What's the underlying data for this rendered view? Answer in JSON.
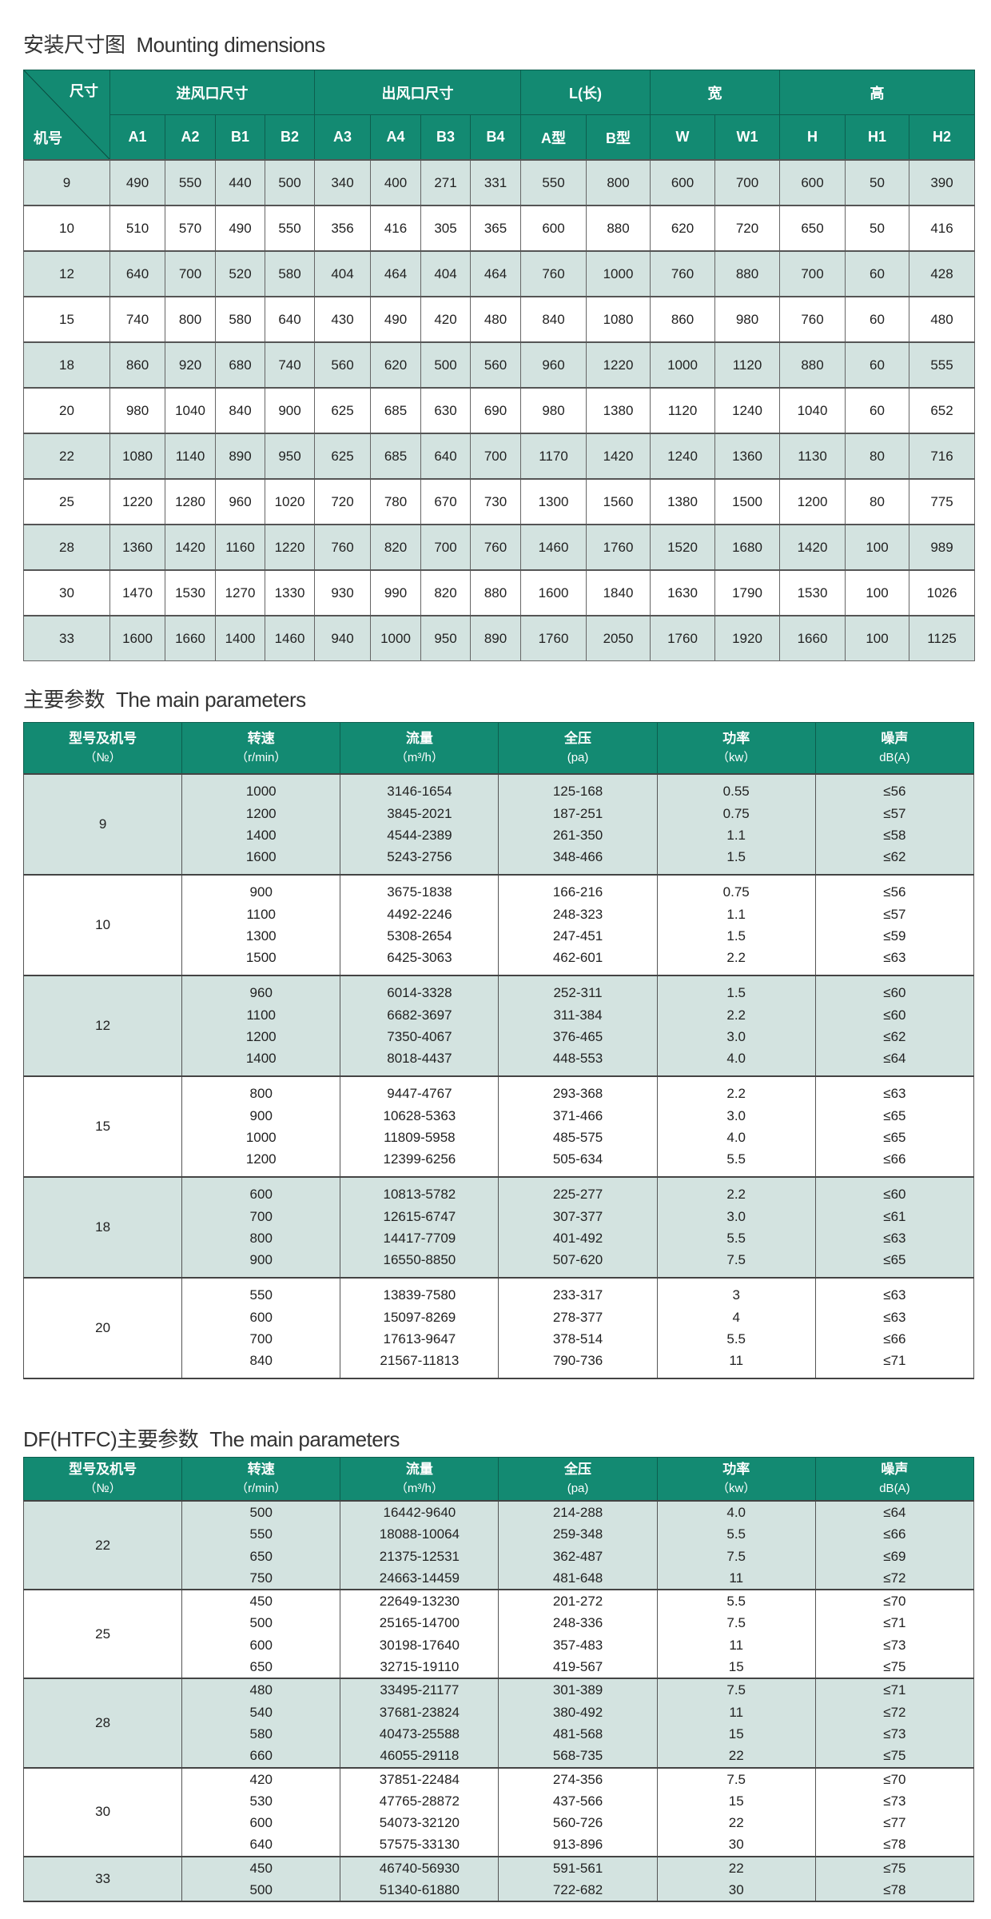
{
  "mounting": {
    "title_cn": "安装尺寸图",
    "title_en": "Mounting dimensions",
    "corner_top": "尺寸",
    "corner_bottom": "机号",
    "groups": [
      {
        "label": "进风口尺寸",
        "span": 4
      },
      {
        "label": "出风口尺寸",
        "span": 4
      },
      {
        "label": "L(长)",
        "span": 2
      },
      {
        "label": "宽",
        "span": 2
      },
      {
        "label": "高",
        "span": 3
      }
    ],
    "columns": [
      "A1",
      "A2",
      "B1",
      "B2",
      "A3",
      "A4",
      "B3",
      "B4",
      "A型",
      "B型",
      "W",
      "W1",
      "H",
      "H1",
      "H2"
    ],
    "rows": [
      [
        "9",
        "490",
        "550",
        "440",
        "500",
        "340",
        "400",
        "271",
        "331",
        "550",
        "800",
        "600",
        "700",
        "600",
        "50",
        "390"
      ],
      [
        "10",
        "510",
        "570",
        "490",
        "550",
        "356",
        "416",
        "305",
        "365",
        "600",
        "880",
        "620",
        "720",
        "650",
        "50",
        "416"
      ],
      [
        "12",
        "640",
        "700",
        "520",
        "580",
        "404",
        "464",
        "404",
        "464",
        "760",
        "1000",
        "760",
        "880",
        "700",
        "60",
        "428"
      ],
      [
        "15",
        "740",
        "800",
        "580",
        "640",
        "430",
        "490",
        "420",
        "480",
        "840",
        "1080",
        "860",
        "980",
        "760",
        "60",
        "480"
      ],
      [
        "18",
        "860",
        "920",
        "680",
        "740",
        "560",
        "620",
        "500",
        "560",
        "960",
        "1220",
        "1000",
        "1120",
        "880",
        "60",
        "555"
      ],
      [
        "20",
        "980",
        "1040",
        "840",
        "900",
        "625",
        "685",
        "630",
        "690",
        "980",
        "1380",
        "1120",
        "1240",
        "1040",
        "60",
        "652"
      ],
      [
        "22",
        "1080",
        "1140",
        "890",
        "950",
        "625",
        "685",
        "640",
        "700",
        "1170",
        "1420",
        "1240",
        "1360",
        "1130",
        "80",
        "716"
      ],
      [
        "25",
        "1220",
        "1280",
        "960",
        "1020",
        "720",
        "780",
        "670",
        "730",
        "1300",
        "1560",
        "1380",
        "1500",
        "1200",
        "80",
        "775"
      ],
      [
        "28",
        "1360",
        "1420",
        "1160",
        "1220",
        "760",
        "820",
        "700",
        "760",
        "1460",
        "1760",
        "1520",
        "1680",
        "1420",
        "100",
        "989"
      ],
      [
        "30",
        "1470",
        "1530",
        "1270",
        "1330",
        "930",
        "990",
        "820",
        "880",
        "1600",
        "1840",
        "1630",
        "1790",
        "1530",
        "100",
        "1026"
      ],
      [
        "33",
        "1600",
        "1660",
        "1400",
        "1460",
        "940",
        "1000",
        "950",
        "890",
        "1760",
        "2050",
        "1760",
        "1920",
        "1660",
        "100",
        "1125"
      ]
    ]
  },
  "main_params": {
    "title_cn": "主要参数",
    "title_en": "The main parameters",
    "headers": [
      {
        "name": "型号及机号",
        "unit": "（№）"
      },
      {
        "name": "转速",
        "unit": "（r/min）"
      },
      {
        "name": "流量",
        "unit": "（m³/h）"
      },
      {
        "name": "全压",
        "unit": "(pa)"
      },
      {
        "name": "功率",
        "unit": "（kw）"
      },
      {
        "name": "噪声",
        "unit": "dB(A)"
      }
    ],
    "groups": [
      {
        "model": "9",
        "rows": [
          [
            "1000",
            "3146-1654",
            "125-168",
            "0.55",
            "≤56"
          ],
          [
            "1200",
            "3845-2021",
            "187-251",
            "0.75",
            "≤57"
          ],
          [
            "1400",
            "4544-2389",
            "261-350",
            "1.1",
            "≤58"
          ],
          [
            "1600",
            "5243-2756",
            "348-466",
            "1.5",
            "≤62"
          ]
        ]
      },
      {
        "model": "10",
        "rows": [
          [
            "900",
            "3675-1838",
            "166-216",
            "0.75",
            "≤56"
          ],
          [
            "1100",
            "4492-2246",
            "248-323",
            "1.1",
            "≤57"
          ],
          [
            "1300",
            "5308-2654",
            "247-451",
            "1.5",
            "≤59"
          ],
          [
            "1500",
            "6425-3063",
            "462-601",
            "2.2",
            "≤63"
          ]
        ]
      },
      {
        "model": "12",
        "rows": [
          [
            "960",
            "6014-3328",
            "252-311",
            "1.5",
            "≤60"
          ],
          [
            "1100",
            "6682-3697",
            "311-384",
            "2.2",
            "≤60"
          ],
          [
            "1200",
            "7350-4067",
            "376-465",
            "3.0",
            "≤62"
          ],
          [
            "1400",
            "8018-4437",
            "448-553",
            "4.0",
            "≤64"
          ]
        ]
      },
      {
        "model": "15",
        "rows": [
          [
            "800",
            "9447-4767",
            "293-368",
            "2.2",
            "≤63"
          ],
          [
            "900",
            "10628-5363",
            "371-466",
            "3.0",
            "≤65"
          ],
          [
            "1000",
            "11809-5958",
            "485-575",
            "4.0",
            "≤65"
          ],
          [
            "1200",
            "12399-6256",
            "505-634",
            "5.5",
            "≤66"
          ]
        ]
      },
      {
        "model": "18",
        "rows": [
          [
            "600",
            "10813-5782",
            "225-277",
            "2.2",
            "≤60"
          ],
          [
            "700",
            "12615-6747",
            "307-377",
            "3.0",
            "≤61"
          ],
          [
            "800",
            "14417-7709",
            "401-492",
            "5.5",
            "≤63"
          ],
          [
            "900",
            "16550-8850",
            "507-620",
            "7.5",
            "≤65"
          ]
        ]
      },
      {
        "model": "20",
        "rows": [
          [
            "550",
            "13839-7580",
            "233-317",
            "3",
            "≤63"
          ],
          [
            "600",
            "15097-8269",
            "278-377",
            "4",
            "≤63"
          ],
          [
            "700",
            "17613-9647",
            "378-514",
            "5.5",
            "≤66"
          ],
          [
            "840",
            "21567-11813",
            "790-736",
            "11",
            "≤71"
          ]
        ]
      }
    ]
  },
  "df_params": {
    "title_cn": "DF(HTFC)主要参数",
    "title_en": "The main parameters",
    "headers": [
      {
        "name": "型号及机号",
        "unit": "（№）"
      },
      {
        "name": "转速",
        "unit": "（r/min）"
      },
      {
        "name": "流量",
        "unit": "（m³/h）"
      },
      {
        "name": "全压",
        "unit": "(pa)"
      },
      {
        "name": "功率",
        "unit": "（kw）"
      },
      {
        "name": "噪声",
        "unit": "dB(A)"
      }
    ],
    "groups": [
      {
        "model": "22",
        "rows": [
          [
            "500",
            "16442-9640",
            "214-288",
            "4.0",
            "≤64"
          ],
          [
            "550",
            "18088-10064",
            "259-348",
            "5.5",
            "≤66"
          ],
          [
            "650",
            "21375-12531",
            "362-487",
            "7.5",
            "≤69"
          ],
          [
            "750",
            "24663-14459",
            "481-648",
            "11",
            "≤72"
          ]
        ]
      },
      {
        "model": "25",
        "rows": [
          [
            "450",
            "22649-13230",
            "201-272",
            "5.5",
            "≤70"
          ],
          [
            "500",
            "25165-14700",
            "248-336",
            "7.5",
            "≤71"
          ],
          [
            "600",
            "30198-17640",
            "357-483",
            "11",
            "≤73"
          ],
          [
            "650",
            "32715-19110",
            "419-567",
            "15",
            "≤75"
          ]
        ]
      },
      {
        "model": "28",
        "rows": [
          [
            "480",
            "33495-21177",
            "301-389",
            "7.5",
            "≤71"
          ],
          [
            "540",
            "37681-23824",
            "380-492",
            "11",
            "≤72"
          ],
          [
            "580",
            "40473-25588",
            "481-568",
            "15",
            "≤73"
          ],
          [
            "660",
            "46055-29118",
            "568-735",
            "22",
            "≤75"
          ]
        ]
      },
      {
        "model": "30",
        "rows": [
          [
            "420",
            "37851-22484",
            "274-356",
            "7.5",
            "≤70"
          ],
          [
            "530",
            "47765-28872",
            "437-566",
            "15",
            "≤73"
          ],
          [
            "600",
            "54073-32120",
            "560-726",
            "22",
            "≤77"
          ],
          [
            "640",
            "57575-33130",
            "913-896",
            "30",
            "≤78"
          ]
        ]
      },
      {
        "model": "33",
        "rows": [
          [
            "450",
            "46740-56930",
            "591-561",
            "22",
            "≤75"
          ],
          [
            "500",
            "51340-61880",
            "722-682",
            "30",
            "≤78"
          ]
        ]
      }
    ]
  },
  "colors": {
    "header_green": "#138a72",
    "band_teal": "#d3e3e0",
    "border": "#555555"
  }
}
